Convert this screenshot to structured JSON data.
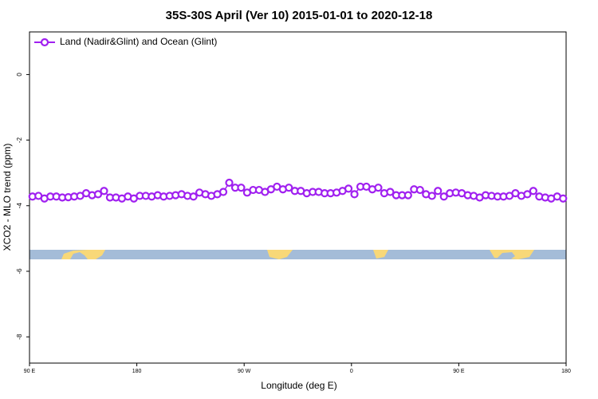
{
  "chart_data": {
    "type": "line",
    "title": "35S-30S April (Ver 10)   2015-01-01 to 2020-12-18",
    "xlabel": "Longitude (deg E)",
    "ylabel": "XCO2 - MLO trend (ppm)",
    "xlim": [
      90,
      540
    ],
    "xticks": [
      {
        "value": 90,
        "label": "90 E"
      },
      180,
      {
        "value": 270,
        "label": "90 W"
      },
      {
        "value": 360,
        "label": "0"
      },
      {
        "value": 450,
        "label": "90 E"
      },
      {
        "value": 540,
        "label": "180"
      }
    ],
    "ylim": [
      -8.8,
      1.3
    ],
    "yticks": [
      0,
      -2,
      -4,
      -6,
      -8
    ],
    "legend": "top-left",
    "x": [
      92.5,
      97.5,
      102.5,
      107.5,
      112.5,
      117.5,
      122.5,
      127.5,
      132.5,
      137.5,
      142.5,
      147.5,
      152.5,
      157.5,
      162.5,
      167.5,
      172.5,
      177.5,
      182.5,
      187.5,
      192.5,
      197.5,
      202.5,
      207.5,
      212.5,
      217.5,
      222.5,
      227.5,
      232.5,
      237.5,
      242.5,
      247.5,
      252.5,
      257.5,
      262.5,
      267.5,
      272.5,
      277.5,
      282.5,
      287.5,
      292.5,
      297.5,
      302.5,
      307.5,
      312.5,
      317.5,
      322.5,
      327.5,
      332.5,
      337.5,
      342.5,
      347.5,
      352.5,
      357.5,
      362.5,
      367.5,
      372.5,
      377.5,
      382.5,
      387.5,
      392.5,
      397.5,
      402.5,
      407.5,
      412.5,
      417.5,
      422.5,
      427.5,
      432.5,
      437.5,
      442.5,
      447.5,
      452.5,
      457.5,
      462.5,
      467.5,
      472.5,
      477.5,
      482.5,
      487.5,
      492.5,
      497.5,
      502.5,
      507.5,
      512.5,
      517.5,
      522.5,
      527.5,
      532.5,
      537.5
    ],
    "series": [
      {
        "name": "Land (Nadir&Glint) and Ocean (Glint)",
        "color": "#a020f0",
        "values": [
          -3.72,
          -3.7,
          -3.78,
          -3.72,
          -3.72,
          -3.75,
          -3.74,
          -3.72,
          -3.7,
          -3.62,
          -3.68,
          -3.65,
          -3.55,
          -3.75,
          -3.75,
          -3.78,
          -3.72,
          -3.78,
          -3.7,
          -3.7,
          -3.72,
          -3.68,
          -3.72,
          -3.7,
          -3.68,
          -3.65,
          -3.7,
          -3.72,
          -3.6,
          -3.65,
          -3.7,
          -3.65,
          -3.58,
          -3.3,
          -3.45,
          -3.45,
          -3.6,
          -3.52,
          -3.52,
          -3.58,
          -3.5,
          -3.42,
          -3.5,
          -3.45,
          -3.55,
          -3.55,
          -3.62,
          -3.58,
          -3.58,
          -3.62,
          -3.62,
          -3.6,
          -3.55,
          -3.48,
          -3.65,
          -3.42,
          -3.42,
          -3.5,
          -3.45,
          -3.62,
          -3.58,
          -3.68,
          -3.68,
          -3.68,
          -3.5,
          -3.52,
          -3.65,
          -3.7,
          -3.55,
          -3.72,
          -3.62,
          -3.6,
          -3.62,
          -3.68,
          -3.7,
          -3.75,
          -3.68,
          -3.7,
          -3.72,
          -3.72,
          -3.7,
          -3.62,
          -3.7,
          -3.65,
          -3.55,
          -3.72,
          -3.75,
          -3.78,
          -3.72,
          -3.78
        ]
      }
    ]
  }
}
